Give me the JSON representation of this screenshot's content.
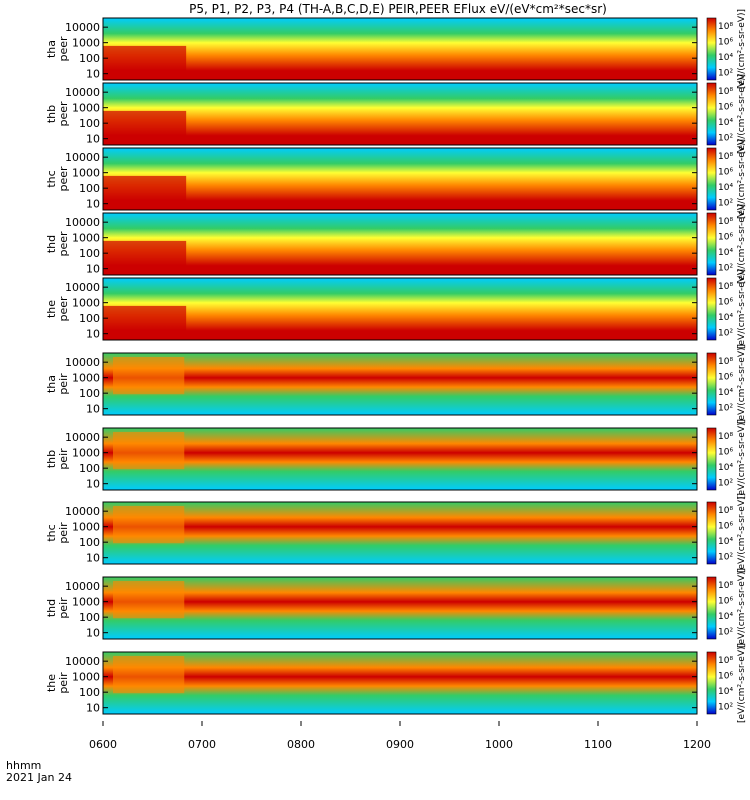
{
  "chart_data": {
    "type": "heatmap",
    "title": "P5, P1, P2, P3, P4 (TH-A,B,C,D,E) PEIR,PEER EFlux eV/(eV*cm²*sec*sr)",
    "xlabel_left": "hhmm",
    "date_label": "2021 Jan 24",
    "x_ticks": [
      "0600",
      "0700",
      "0800",
      "0900",
      "1000",
      "1100",
      "1200"
    ],
    "x_range": [
      "0600",
      "1200"
    ],
    "y_ticks": [
      "10",
      "100",
      "1000",
      "10000"
    ],
    "y_scale": "log",
    "colorbar_ticks": [
      "10²",
      "10⁴",
      "10⁶",
      "10⁸"
    ],
    "colorbar_label": "[eV/(cm²-s-sr-eV)]",
    "colors": {
      "low": "#0000cc",
      "mid_low": "#00ccff",
      "mid": "#33cc66",
      "mid_high": "#ffff33",
      "high": "#ff8800",
      "max": "#cc0000"
    },
    "panels": [
      {
        "label_1": "tha",
        "label_2": "peer",
        "name": "tha-peer"
      },
      {
        "label_1": "thb",
        "label_2": "peer",
        "name": "thb-peer"
      },
      {
        "label_1": "thc",
        "label_2": "peer",
        "name": "thc-peer"
      },
      {
        "label_1": "thd",
        "label_2": "peer",
        "name": "thd-peer"
      },
      {
        "label_1": "the",
        "label_2": "peer",
        "name": "the-peer"
      },
      {
        "label_1": "tha",
        "label_2": "peir",
        "name": "tha-peir"
      },
      {
        "label_1": "thb",
        "label_2": "peir",
        "name": "thb-peir"
      },
      {
        "label_1": "thc",
        "label_2": "peir",
        "name": "thc-peir"
      },
      {
        "label_1": "thd",
        "label_2": "peir",
        "name": "thd-peir"
      },
      {
        "label_1": "the",
        "label_2": "peir",
        "name": "the-peir"
      }
    ]
  }
}
